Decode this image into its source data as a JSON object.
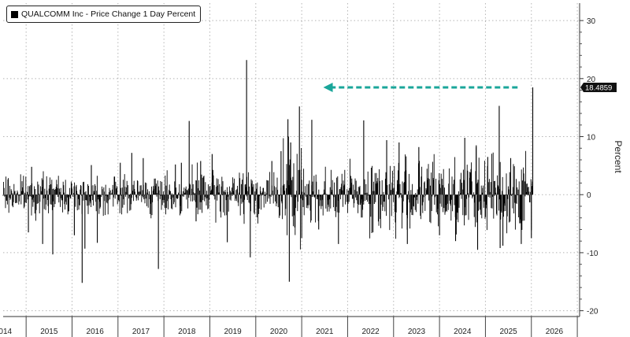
{
  "chart_data": {
    "type": "bar",
    "series": [
      {
        "name": "QUALCOMM Inc - Price Change 1 Day Percent",
        "color": "#000000",
        "spikes": [
          {
            "x": 2014.55,
            "y": -6.5
          },
          {
            "x": 2014.62,
            "y": 4.8
          },
          {
            "x": 2014.86,
            "y": -8.5
          },
          {
            "x": 2015.08,
            "y": -10.3
          },
          {
            "x": 2015.55,
            "y": -7.0
          },
          {
            "x": 2015.72,
            "y": -15.2
          },
          {
            "x": 2015.78,
            "y": -9.3
          },
          {
            "x": 2015.92,
            "y": 5.1
          },
          {
            "x": 2016.05,
            "y": -8.3
          },
          {
            "x": 2016.55,
            "y": 5.5
          },
          {
            "x": 2016.8,
            "y": 7.2
          },
          {
            "x": 2017.05,
            "y": 6.3
          },
          {
            "x": 2017.38,
            "y": -12.8
          },
          {
            "x": 2017.75,
            "y": 5.2
          },
          {
            "x": 2017.88,
            "y": 5.5
          },
          {
            "x": 2018.05,
            "y": 12.7
          },
          {
            "x": 2018.2,
            "y": -4.6
          },
          {
            "x": 2018.3,
            "y": 5.8
          },
          {
            "x": 2018.55,
            "y": 7.0
          },
          {
            "x": 2018.88,
            "y": -8.2
          },
          {
            "x": 2019.3,
            "y": 23.2
          },
          {
            "x": 2019.38,
            "y": -10.8
          },
          {
            "x": 2019.85,
            "y": 5.8
          },
          {
            "x": 2020.05,
            "y": 7.5
          },
          {
            "x": 2020.2,
            "y": 13.0
          },
          {
            "x": 2020.23,
            "y": -15.0
          },
          {
            "x": 2020.26,
            "y": 9.0
          },
          {
            "x": 2020.45,
            "y": 15.2
          },
          {
            "x": 2020.5,
            "y": -7.5
          },
          {
            "x": 2020.72,
            "y": 12.9
          },
          {
            "x": 2020.87,
            "y": -6.0
          },
          {
            "x": 2021.3,
            "y": -8.5
          },
          {
            "x": 2021.85,
            "y": 12.8
          },
          {
            "x": 2022.05,
            "y": -6.5
          },
          {
            "x": 2022.35,
            "y": 9.4
          },
          {
            "x": 2022.62,
            "y": 9.0
          },
          {
            "x": 2022.8,
            "y": -8.5
          },
          {
            "x": 2023.05,
            "y": 8.2
          },
          {
            "x": 2023.5,
            "y": -7.0
          },
          {
            "x": 2023.85,
            "y": -8.0
          },
          {
            "x": 2024.05,
            "y": 9.8
          },
          {
            "x": 2024.3,
            "y": 8.5
          },
          {
            "x": 2024.33,
            "y": -9.5
          },
          {
            "x": 2024.55,
            "y": 6.5
          },
          {
            "x": 2024.8,
            "y": 15.3
          },
          {
            "x": 2024.82,
            "y": -9.2
          },
          {
            "x": 2024.88,
            "y": -8.8
          },
          {
            "x": 2025.05,
            "y": 6.3
          },
          {
            "x": 2025.28,
            "y": -8.5
          },
          {
            "x": 2025.5,
            "y": -7.5
          },
          {
            "x": 2025.53,
            "y": 18.4859
          }
        ]
      }
    ],
    "last_value": 18.4859,
    "last_value_label": "18.4859",
    "x_tick_labels": [
      "2014",
      "2015",
      "2016",
      "2017",
      "2018",
      "2019",
      "2020",
      "2021",
      "2022",
      "2023",
      "2024",
      "2025",
      "2026"
    ],
    "y_tick_labels": [
      "30",
      "20",
      "10",
      "0",
      "-10",
      "-20"
    ],
    "y_ticks": [
      30,
      20,
      10,
      0,
      -10,
      -20
    ],
    "xlim": [
      2014.0,
      2026.55
    ],
    "ylim": [
      -21,
      33
    ],
    "ylabel": "Percent",
    "xlabel": "",
    "grid": "dotted",
    "legend_position": "top-left",
    "annotation": {
      "type": "dashed-arrow",
      "color": "#1aa69a",
      "y": 18.4859,
      "x_from": 2025.2,
      "x_to": 2020.97
    }
  }
}
